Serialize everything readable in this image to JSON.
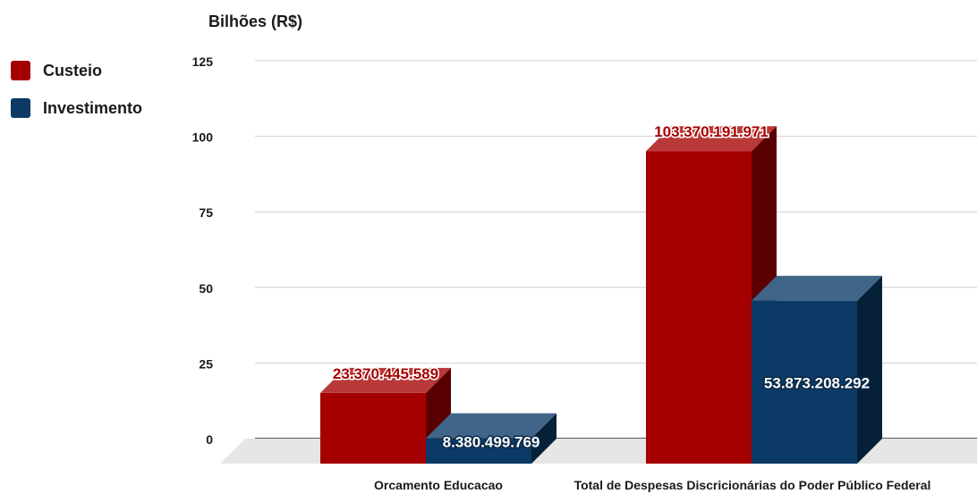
{
  "chart_data": {
    "type": "bar",
    "ylabel": "Bilhões (R$)",
    "ylim": [
      0,
      125
    ],
    "yticks": [
      0,
      25,
      50,
      75,
      100,
      125
    ],
    "grid": true,
    "legend_position": "top-left",
    "categories": [
      "Orcamento Educacao",
      "Total de Despesas Discricionárias do Poder Público Federal"
    ],
    "series": [
      {
        "name": "Custeio",
        "color": "#a50000",
        "values": [
          23.370445589,
          103.370191971
        ],
        "labels": [
          "23.370.445.589",
          "103.370.191.971"
        ]
      },
      {
        "name": "Investimento",
        "color": "#0b3a66",
        "values": [
          8.380499769,
          53.873208292
        ],
        "labels": [
          "8.380.499.769",
          "53.873.208.292"
        ]
      }
    ]
  }
}
